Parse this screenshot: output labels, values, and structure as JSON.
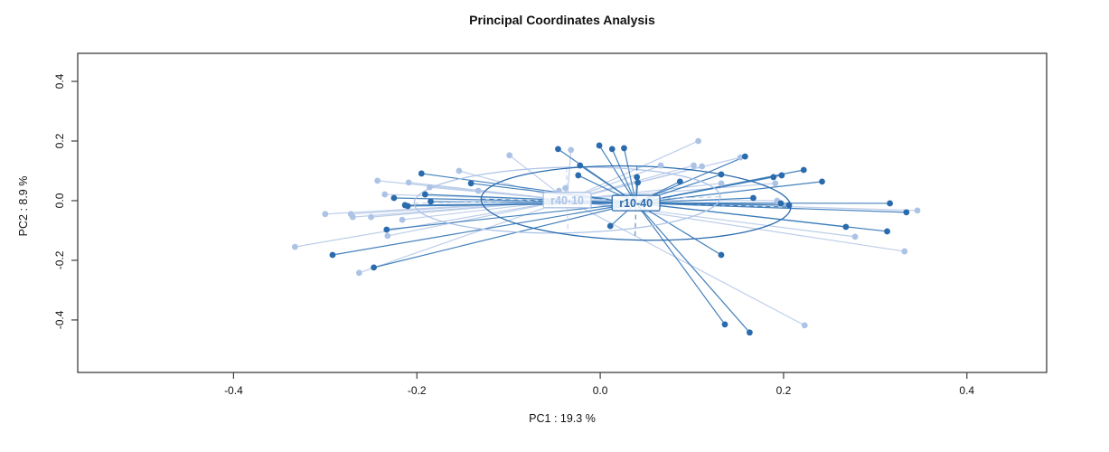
{
  "chart_data": {
    "type": "scatter",
    "title": "Principal Coordinates Analysis",
    "xlabel": "PC1 :  19.3 %",
    "ylabel": "PC2 :  8.9 %",
    "xlim": [
      -0.57,
      0.487
    ],
    "ylim": [
      -0.576,
      0.494
    ],
    "x_ticks": [
      -0.4,
      -0.2,
      0.0,
      0.2,
      0.4
    ],
    "x_tick_labels": [
      "-0.4",
      "-0.2",
      "0.0",
      "0.2",
      "0.4"
    ],
    "y_ticks": [
      -0.4,
      -0.2,
      0.0,
      0.2,
      0.4
    ],
    "y_tick_labels": [
      "-0.4",
      "-0.2",
      "0.0",
      "0.2",
      "0.4"
    ],
    "grid": false,
    "legend_position": "none",
    "frame_color": "#3f3f3f",
    "text_color": "#111111",
    "background_color": "#ffffff",
    "groups": [
      {
        "label": "r40-10",
        "point_color": "#adc3e6",
        "line_color": "#b9cbe9",
        "centroid": [
          -0.036,
          0.002
        ],
        "ellipse": {
          "rx": 0.167,
          "ry": 0.11,
          "angle_deg": -1.2
        },
        "points": [
          [
            -0.333,
            -0.155
          ],
          [
            -0.3,
            -0.045
          ],
          [
            -0.272,
            -0.045
          ],
          [
            -0.27,
            -0.055
          ],
          [
            -0.25,
            -0.055
          ],
          [
            -0.243,
            0.067
          ],
          [
            -0.235,
            0.021
          ],
          [
            -0.216,
            -0.064
          ],
          [
            -0.232,
            -0.118
          ],
          [
            -0.263,
            -0.242
          ],
          [
            -0.209,
            0.061
          ],
          [
            -0.186,
            0.045
          ],
          [
            -0.154,
            0.1
          ],
          [
            -0.133,
            0.033
          ],
          [
            -0.099,
            0.152
          ],
          [
            -0.045,
            0.033
          ],
          [
            -0.038,
            0.042
          ],
          [
            -0.032,
            0.17
          ],
          [
            0.066,
            0.118
          ],
          [
            0.102,
            0.118
          ],
          [
            0.107,
            0.2
          ],
          [
            0.111,
            0.115
          ],
          [
            0.132,
            0.058
          ],
          [
            0.153,
            0.145
          ],
          [
            0.191,
            0.058
          ],
          [
            0.193,
            0.0
          ],
          [
            0.223,
            -0.418
          ],
          [
            0.278,
            -0.121
          ],
          [
            0.332,
            -0.17
          ],
          [
            0.346,
            -0.033
          ]
        ]
      },
      {
        "label": "r10-40",
        "point_color": "#2a6bad",
        "line_color": "#3a7ab8",
        "centroid": [
          0.039,
          -0.008
        ],
        "ellipse": {
          "rx": 0.169,
          "ry": 0.124,
          "angle_deg": 1.5
        },
        "points": [
          [
            -0.292,
            -0.182
          ],
          [
            -0.247,
            -0.224
          ],
          [
            -0.233,
            -0.097
          ],
          [
            -0.225,
            0.009
          ],
          [
            -0.213,
            -0.015
          ],
          [
            -0.21,
            -0.018
          ],
          [
            -0.195,
            0.091
          ],
          [
            -0.191,
            0.021
          ],
          [
            -0.185,
            -0.003
          ],
          [
            -0.141,
            0.058
          ],
          [
            -0.046,
            0.173
          ],
          [
            -0.022,
            0.118
          ],
          [
            -0.024,
            0.085
          ],
          [
            -0.001,
            0.185
          ],
          [
            0.013,
            0.173
          ],
          [
            0.026,
            0.176
          ],
          [
            0.04,
            0.079
          ],
          [
            0.041,
            0.061
          ],
          [
            0.087,
            0.064
          ],
          [
            0.011,
            -0.085
          ],
          [
            0.132,
            0.088
          ],
          [
            0.158,
            0.148
          ],
          [
            0.189,
            0.079
          ],
          [
            0.198,
            0.085
          ],
          [
            0.222,
            0.103
          ],
          [
            0.242,
            0.064
          ],
          [
            0.167,
            0.009
          ],
          [
            0.197,
            -0.009
          ],
          [
            0.206,
            -0.015
          ],
          [
            0.316,
            -0.009
          ],
          [
            0.334,
            -0.039
          ],
          [
            0.313,
            -0.103
          ],
          [
            0.268,
            -0.088
          ],
          [
            0.132,
            -0.182
          ],
          [
            0.136,
            -0.415
          ],
          [
            0.163,
            -0.442
          ]
        ]
      }
    ]
  }
}
